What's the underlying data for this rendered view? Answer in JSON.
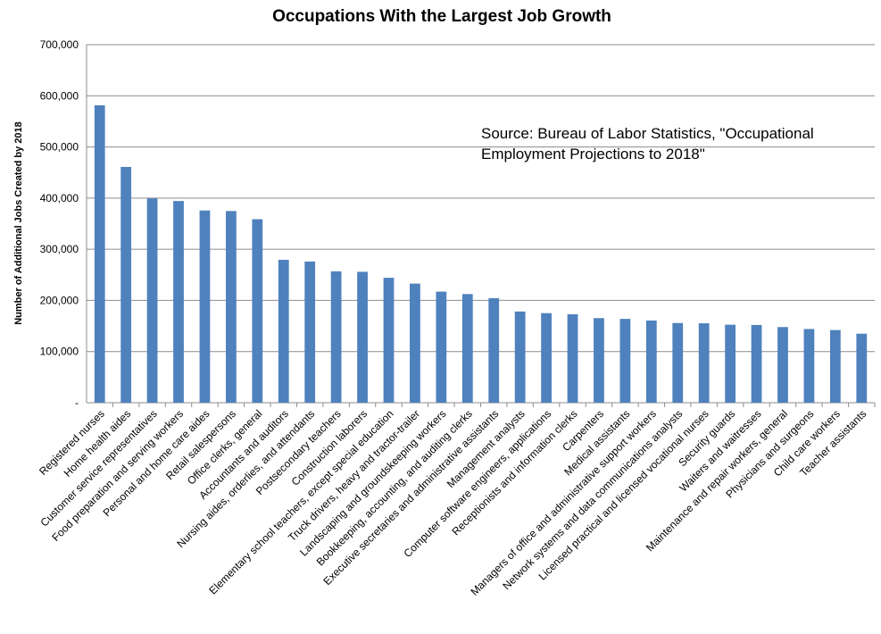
{
  "chart_data": {
    "type": "bar",
    "title": "Occupations With the Largest Job Growth",
    "ylabel": "Number of Additional Jobs Created by 2018",
    "xlabel": "",
    "ylim": [
      0,
      700000
    ],
    "yticks": [
      {
        "value": 0,
        "label": "-"
      },
      {
        "value": 100000,
        "label": "100,000"
      },
      {
        "value": 200000,
        "label": "200,000"
      },
      {
        "value": 300000,
        "label": "300,000"
      },
      {
        "value": 400000,
        "label": "400,000"
      },
      {
        "value": 500000,
        "label": "500,000"
      },
      {
        "value": 600000,
        "label": "600,000"
      },
      {
        "value": 700000,
        "label": "700,000"
      }
    ],
    "grid": true,
    "legend": "none",
    "bar_color": "#4f81bd",
    "annotation": [
      "Source: Bureau of Labor Statistics, \"Occupational",
      "Employment Projections to 2018\""
    ],
    "categories": [
      "Registered nurses",
      "Home health aides",
      "Customer service representatives",
      "Food preparation and serving workers",
      "Personal and home care aides",
      "Retail salespersons",
      "Office clerks, general",
      "Accountants and auditors",
      "Nursing aides, orderlies, and attendants",
      "Postsecondary teachers",
      "Construction laborers",
      "Elementary school teachers, except special education",
      "Truck drivers, heavy and tractor-trailer",
      "Landscaping and groundskeeping workers",
      "Bookkeeping, accounting, and auditing clerks",
      "Executive secretaries and administrative assistants",
      "Management analysts",
      "Computer software engineers, applications",
      "Receptionists and information clerks",
      "Carpenters",
      "Medical assistants",
      "Managers of office and administrative support workers",
      "Network systems and data communications analysts",
      "Licensed practical and licensed vocational nurses",
      "Security guards",
      "Waiters and waitresses",
      "Maintenance and repair workers, general",
      "Physicians and surgeons",
      "Child care workers",
      "Teacher assistants"
    ],
    "values": [
      581500,
      460900,
      399500,
      394300,
      375800,
      374700,
      358700,
      279400,
      276000,
      256900,
      255900,
      244200,
      232900,
      217100,
      212400,
      204400,
      178300,
      175100,
      172900,
      165400,
      163900,
      160700,
      155800,
      155300,
      152500,
      152000,
      147900,
      144100,
      142100,
      134900
    ]
  }
}
